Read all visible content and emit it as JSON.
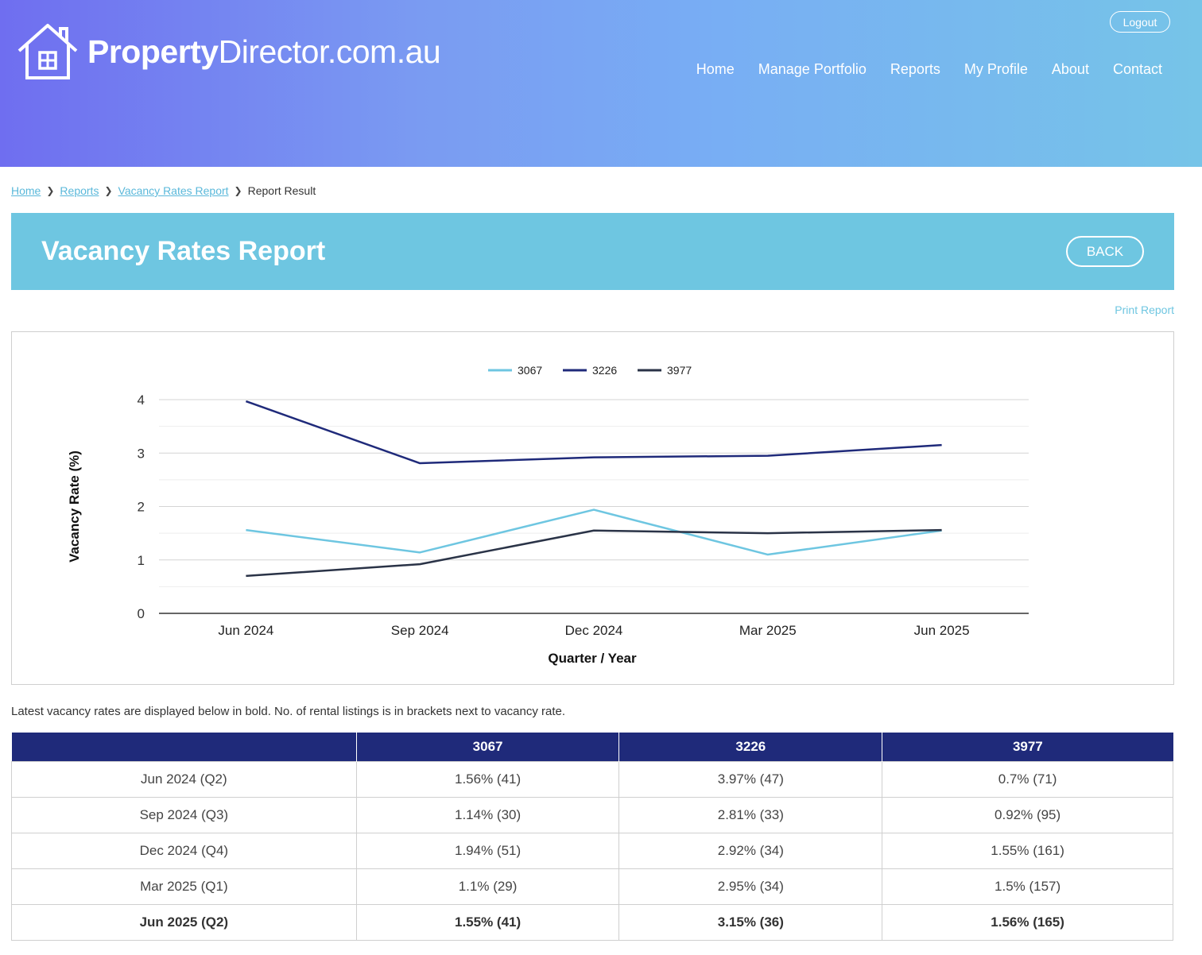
{
  "header": {
    "logo_bold": "Property",
    "logo_rest": "Director.com.au",
    "logout_label": "Logout",
    "nav": [
      "Home",
      "Manage Portfolio",
      "Reports",
      "My Profile",
      "About",
      "Contact"
    ]
  },
  "breadcrumb": {
    "items": [
      "Home",
      "Reports",
      "Vacancy Rates Report"
    ],
    "current": "Report Result"
  },
  "page": {
    "title": "Vacancy Rates Report",
    "back_label": "BACK",
    "print_label": "Print Report",
    "note": "Latest vacancy rates are displayed below in bold. No. of rental listings is in brackets next to vacancy rate."
  },
  "chart_data": {
    "type": "line",
    "categories": [
      "Jun 2024",
      "Sep 2024",
      "Dec 2024",
      "Mar 2025",
      "Jun 2025"
    ],
    "series": [
      {
        "name": "3067",
        "color": "#6ec6e1",
        "values": [
          1.56,
          1.14,
          1.94,
          1.1,
          1.55
        ]
      },
      {
        "name": "3226",
        "color": "#1f2a7a",
        "values": [
          3.97,
          2.81,
          2.92,
          2.95,
          3.15
        ]
      },
      {
        "name": "3977",
        "color": "#2a3347",
        "values": [
          0.7,
          0.92,
          1.55,
          1.5,
          1.56
        ]
      }
    ],
    "xlabel": "Quarter / Year",
    "ylabel": "Vacancy Rate (%)",
    "ylim": [
      0,
      4
    ],
    "yticks": [
      0,
      1,
      2,
      3,
      4
    ],
    "grid": true,
    "legend": "top-center"
  },
  "table": {
    "headers": [
      "",
      "3067",
      "3226",
      "3977"
    ],
    "rows": [
      {
        "label": "Jun 2024 (Q2)",
        "cells": [
          "1.56% (41)",
          "3.97% (47)",
          "0.7% (71)"
        ],
        "latest": false
      },
      {
        "label": "Sep 2024 (Q3)",
        "cells": [
          "1.14% (30)",
          "2.81% (33)",
          "0.92% (95)"
        ],
        "latest": false
      },
      {
        "label": "Dec 2024 (Q4)",
        "cells": [
          "1.94% (51)",
          "2.92% (34)",
          "1.55% (161)"
        ],
        "latest": false
      },
      {
        "label": "Mar 2025 (Q1)",
        "cells": [
          "1.1% (29)",
          "2.95% (34)",
          "1.5% (157)"
        ],
        "latest": false
      },
      {
        "label": "Jun 2025 (Q2)",
        "cells": [
          "1.55% (41)",
          "3.15% (36)",
          "1.56% (165)"
        ],
        "latest": true
      }
    ]
  }
}
